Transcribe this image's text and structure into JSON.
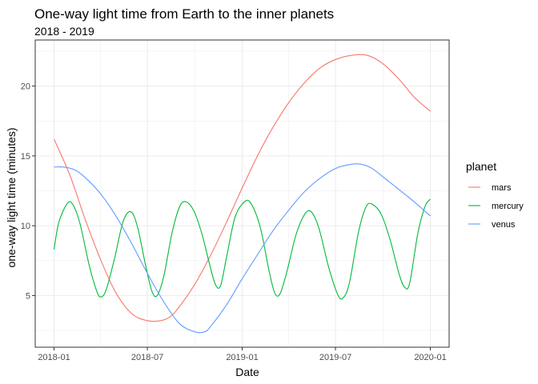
{
  "chart_data": {
    "type": "line",
    "title": "One-way light time from Earth to the inner planets",
    "subtitle": "2018 - 2019",
    "xlabel": "Date",
    "ylabel": "one-way light time (minutes)",
    "xlim": [
      "2018-01-01",
      "2020-01-01"
    ],
    "ylim": [
      2.3,
      22.3
    ],
    "x_ticks": [
      "2018-01-01",
      "2018-07-01",
      "2019-01-01",
      "2019-07-01",
      "2020-01-01"
    ],
    "x_tick_labels": [
      "2018-01",
      "2018-07",
      "2019-01",
      "2019-07",
      "2020-01"
    ],
    "y_ticks": [
      5,
      10,
      15,
      20
    ],
    "grid": true,
    "legend": {
      "title": "planet",
      "position": "right"
    },
    "series": [
      {
        "name": "mars",
        "color": "#F8766D",
        "points": [
          [
            "2018-01-01",
            16.2
          ],
          [
            "2018-02-01",
            13.6
          ],
          [
            "2018-03-01",
            10.6
          ],
          [
            "2018-04-01",
            7.6
          ],
          [
            "2018-05-01",
            5.2
          ],
          [
            "2018-06-01",
            3.7
          ],
          [
            "2018-07-01",
            3.2
          ],
          [
            "2018-07-27",
            3.2
          ],
          [
            "2018-08-15",
            3.5
          ],
          [
            "2018-09-01",
            4.2
          ],
          [
            "2018-10-01",
            5.8
          ],
          [
            "2018-11-01",
            7.9
          ],
          [
            "2018-12-01",
            10.2
          ],
          [
            "2019-01-01",
            12.7
          ],
          [
            "2019-02-01",
            15.1
          ],
          [
            "2019-03-01",
            17.0
          ],
          [
            "2019-04-01",
            18.8
          ],
          [
            "2019-05-01",
            20.2
          ],
          [
            "2019-06-01",
            21.3
          ],
          [
            "2019-07-01",
            21.9
          ],
          [
            "2019-08-01",
            22.2
          ],
          [
            "2019-09-01",
            22.2
          ],
          [
            "2019-10-01",
            21.6
          ],
          [
            "2019-11-01",
            20.5
          ],
          [
            "2019-12-01",
            19.2
          ],
          [
            "2020-01-01",
            18.2
          ]
        ]
      },
      {
        "name": "mercury",
        "color": "#00BA38",
        "points": [
          [
            "2018-01-01",
            8.3
          ],
          [
            "2018-01-10",
            10.2
          ],
          [
            "2018-01-25",
            11.5
          ],
          [
            "2018-02-05",
            11.6
          ],
          [
            "2018-02-20",
            10.2
          ],
          [
            "2018-03-10",
            7.2
          ],
          [
            "2018-03-25",
            5.3
          ],
          [
            "2018-04-02",
            4.9
          ],
          [
            "2018-04-12",
            5.4
          ],
          [
            "2018-04-28",
            7.6
          ],
          [
            "2018-05-15",
            10.3
          ],
          [
            "2018-05-30",
            11.0
          ],
          [
            "2018-06-12",
            9.9
          ],
          [
            "2018-06-28",
            7.1
          ],
          [
            "2018-07-10",
            5.3
          ],
          [
            "2018-07-20",
            5.0
          ],
          [
            "2018-08-02",
            6.4
          ],
          [
            "2018-08-18",
            9.5
          ],
          [
            "2018-09-02",
            11.4
          ],
          [
            "2018-09-15",
            11.7
          ],
          [
            "2018-09-30",
            11.0
          ],
          [
            "2018-10-15",
            9.4
          ],
          [
            "2018-10-30",
            7.2
          ],
          [
            "2018-11-10",
            5.8
          ],
          [
            "2018-11-20",
            5.7
          ],
          [
            "2018-12-02",
            7.8
          ],
          [
            "2018-12-18",
            10.6
          ],
          [
            "2019-01-05",
            11.7
          ],
          [
            "2019-01-18",
            11.6
          ],
          [
            "2019-02-05",
            9.9
          ],
          [
            "2019-02-22",
            6.8
          ],
          [
            "2019-03-05",
            5.2
          ],
          [
            "2019-03-15",
            5.1
          ],
          [
            "2019-03-28",
            6.6
          ],
          [
            "2019-04-15",
            9.3
          ],
          [
            "2019-05-02",
            10.8
          ],
          [
            "2019-05-15",
            11.0
          ],
          [
            "2019-05-30",
            9.8
          ],
          [
            "2019-06-18",
            7.0
          ],
          [
            "2019-07-05",
            5.1
          ],
          [
            "2019-07-15",
            4.8
          ],
          [
            "2019-07-28",
            5.9
          ],
          [
            "2019-08-15",
            9.6
          ],
          [
            "2019-08-30",
            11.4
          ],
          [
            "2019-09-12",
            11.5
          ],
          [
            "2019-09-28",
            10.8
          ],
          [
            "2019-10-15",
            9.0
          ],
          [
            "2019-11-01",
            6.6
          ],
          [
            "2019-11-12",
            5.6
          ],
          [
            "2019-11-22",
            5.9
          ],
          [
            "2019-12-08",
            9.5
          ],
          [
            "2019-12-22",
            11.4
          ],
          [
            "2020-01-01",
            11.9
          ]
        ]
      },
      {
        "name": "venus",
        "color": "#619CFF",
        "points": [
          [
            "2018-01-01",
            14.2
          ],
          [
            "2018-01-20",
            14.2
          ],
          [
            "2018-02-10",
            14.0
          ],
          [
            "2018-03-01",
            13.5
          ],
          [
            "2018-04-01",
            12.3
          ],
          [
            "2018-05-01",
            10.7
          ],
          [
            "2018-06-01",
            8.7
          ],
          [
            "2018-07-01",
            6.6
          ],
          [
            "2018-08-01",
            4.6
          ],
          [
            "2018-09-01",
            3.0
          ],
          [
            "2018-10-01",
            2.4
          ],
          [
            "2018-10-20",
            2.4
          ],
          [
            "2018-11-01",
            2.8
          ],
          [
            "2018-12-01",
            4.3
          ],
          [
            "2019-01-01",
            6.2
          ],
          [
            "2019-02-01",
            8.0
          ],
          [
            "2019-03-01",
            9.6
          ],
          [
            "2019-04-01",
            11.1
          ],
          [
            "2019-05-01",
            12.4
          ],
          [
            "2019-06-01",
            13.4
          ],
          [
            "2019-07-01",
            14.1
          ],
          [
            "2019-08-01",
            14.4
          ],
          [
            "2019-08-20",
            14.4
          ],
          [
            "2019-09-10",
            14.1
          ],
          [
            "2019-10-01",
            13.5
          ],
          [
            "2019-11-01",
            12.6
          ],
          [
            "2019-12-01",
            11.7
          ],
          [
            "2020-01-01",
            10.7
          ]
        ]
      }
    ]
  }
}
